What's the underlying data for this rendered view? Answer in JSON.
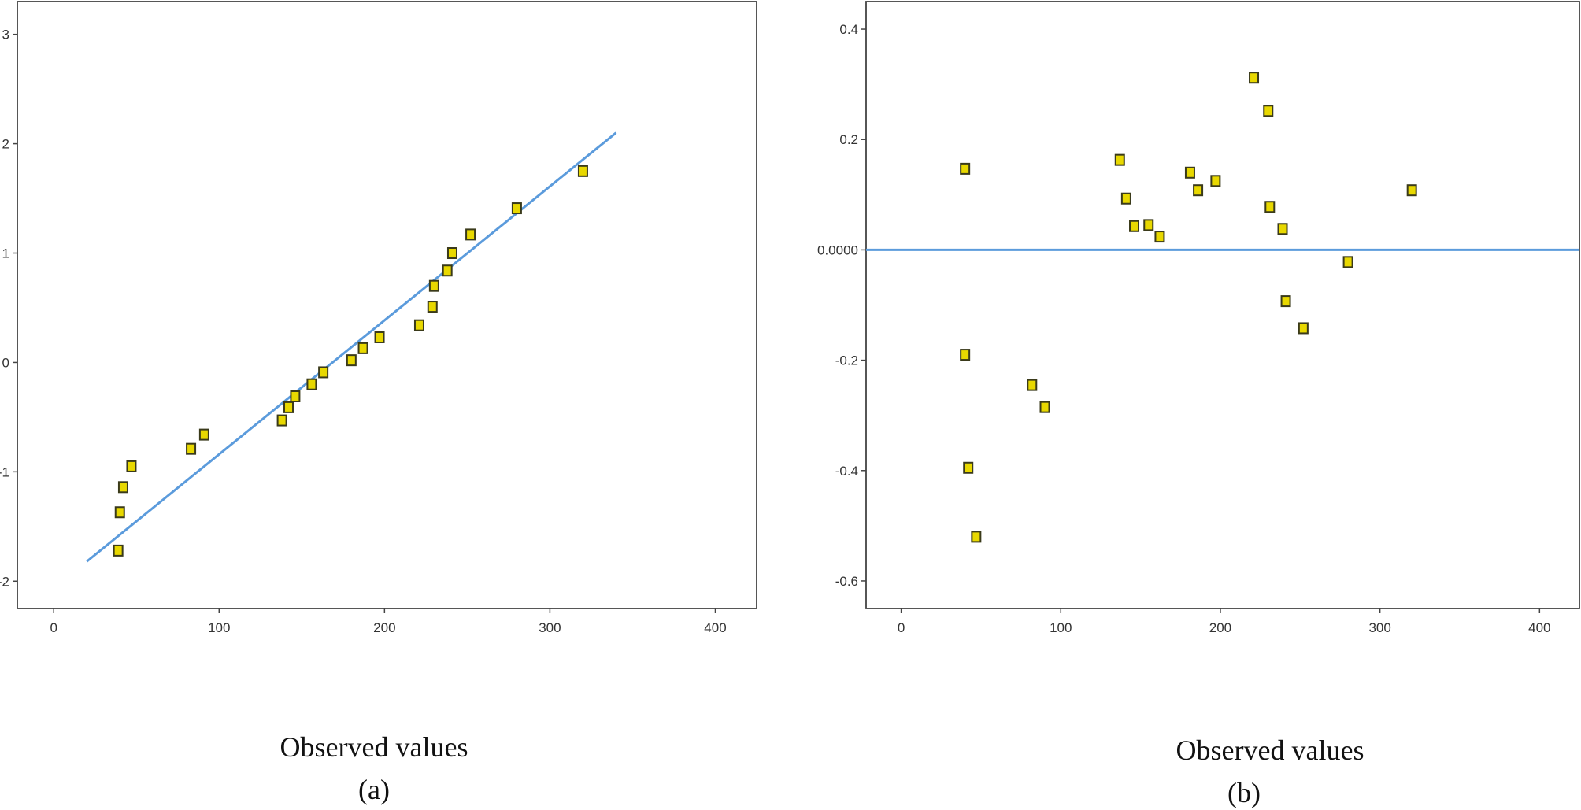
{
  "chart_data": [
    {
      "id": "a",
      "type": "scatter",
      "xlabel": "Observed values",
      "panel_label": "(a)",
      "xlim": [
        -22,
        425
      ],
      "ylim": [
        -2.25,
        3.3
      ],
      "xticks": [
        0,
        100,
        200,
        300,
        400
      ],
      "yticks": [
        -2,
        -1,
        0,
        1,
        2,
        3
      ],
      "ytick_labels": [
        "-2",
        "-1",
        "0",
        "1",
        "2",
        "3"
      ],
      "reference_line": {
        "type": "line",
        "color": "#5b9bdc",
        "points": [
          [
            20,
            -1.82
          ],
          [
            340,
            2.1
          ]
        ]
      },
      "marker_color": "#e8d800",
      "points": [
        [
          39,
          -1.72
        ],
        [
          40,
          -1.37
        ],
        [
          42,
          -1.14
        ],
        [
          47,
          -0.95
        ],
        [
          83,
          -0.79
        ],
        [
          91,
          -0.66
        ],
        [
          138,
          -0.53
        ],
        [
          142,
          -0.41
        ],
        [
          146,
          -0.31
        ],
        [
          156,
          -0.2
        ],
        [
          163,
          -0.09
        ],
        [
          180,
          0.02
        ],
        [
          187,
          0.13
        ],
        [
          197,
          0.23
        ],
        [
          221,
          0.34
        ],
        [
          229,
          0.51
        ],
        [
          230,
          0.7
        ],
        [
          238,
          0.84
        ],
        [
          241,
          1.0
        ],
        [
          252,
          1.17
        ],
        [
          280,
          1.41
        ],
        [
          320,
          1.75
        ]
      ]
    },
    {
      "id": "b",
      "type": "scatter",
      "xlabel": "Observed values",
      "panel_label": "(b)",
      "xlim": [
        -22,
        425
      ],
      "ylim": [
        -0.65,
        0.45
      ],
      "xticks": [
        0,
        100,
        200,
        300,
        400
      ],
      "yticks": [
        -0.6,
        -0.4,
        -0.2,
        0.0,
        0.2,
        0.4
      ],
      "ytick_labels": [
        "-0.6",
        "-0.4",
        "-0.2",
        "0.0000",
        "0.2",
        "0.4"
      ],
      "reference_line": {
        "type": "hline",
        "color": "#5b9bdc",
        "y": 0.0
      },
      "marker_color": "#e8d800",
      "points": [
        [
          40,
          0.147
        ],
        [
          40,
          -0.19
        ],
        [
          42,
          -0.395
        ],
        [
          47,
          -0.52
        ],
        [
          82,
          -0.245
        ],
        [
          90,
          -0.285
        ],
        [
          137,
          0.163
        ],
        [
          141,
          0.093
        ],
        [
          146,
          0.043
        ],
        [
          155,
          0.045
        ],
        [
          162,
          0.024
        ],
        [
          181,
          0.14
        ],
        [
          186,
          0.108
        ],
        [
          197,
          0.125
        ],
        [
          221,
          0.312
        ],
        [
          230,
          0.252
        ],
        [
          231,
          0.078
        ],
        [
          239,
          0.038
        ],
        [
          241,
          -0.093
        ],
        [
          252,
          -0.142
        ],
        [
          280,
          -0.022
        ],
        [
          320,
          0.108
        ]
      ]
    }
  ]
}
